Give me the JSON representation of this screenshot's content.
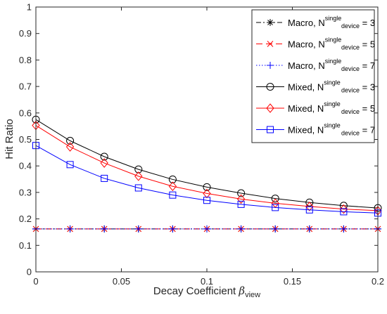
{
  "chart_data": {
    "type": "line",
    "xlabel": "Decay Coefficient",
    "xlabel_symbol": "β",
    "xlabel_sub": "view",
    "ylabel": "Hit Ratio",
    "xlim": [
      0,
      0.2
    ],
    "ylim": [
      0,
      1
    ],
    "x_ticks": [
      "0",
      "0.05",
      "0.1",
      "0.15",
      "0.2"
    ],
    "y_ticks": [
      "0",
      "0.1",
      "0.2",
      "0.3",
      "0.4",
      "0.5",
      "0.6",
      "0.7",
      "0.8",
      "0.9",
      "1"
    ],
    "grid": false,
    "legend_position": "top-right",
    "x": [
      0,
      0.02,
      0.04,
      0.06,
      0.08,
      0.1,
      0.12,
      0.14,
      0.16,
      0.18,
      0.2
    ],
    "series": [
      {
        "name": "Macro, N = 3",
        "legend_prefix": "Macro, N",
        "legend_sup": "single",
        "legend_sub": "device",
        "legend_suffix": " = 3",
        "color": "#000000",
        "dash": "7,3,2,3",
        "marker": "star",
        "values": [
          0.162,
          0.162,
          0.162,
          0.162,
          0.162,
          0.162,
          0.162,
          0.162,
          0.162,
          0.162,
          0.162
        ]
      },
      {
        "name": "Macro, N = 5",
        "legend_prefix": "Macro, N",
        "legend_sup": "single",
        "legend_sub": "device",
        "legend_suffix": " = 5",
        "color": "#ff0000",
        "dash": "9,5",
        "marker": "x",
        "values": [
          0.162,
          0.162,
          0.162,
          0.162,
          0.162,
          0.162,
          0.162,
          0.162,
          0.162,
          0.162,
          0.162
        ]
      },
      {
        "name": "Macro, N = 7",
        "legend_prefix": "Macro, N",
        "legend_sup": "single",
        "legend_sub": "device",
        "legend_suffix": " = 7",
        "color": "#0000ff",
        "dash": "1.5,2.5",
        "marker": "plus",
        "values": [
          0.162,
          0.162,
          0.162,
          0.162,
          0.162,
          0.162,
          0.162,
          0.162,
          0.162,
          0.162,
          0.162
        ]
      },
      {
        "name": "Mixed, N = 3",
        "legend_prefix": "Mixed, N",
        "legend_sup": "single",
        "legend_sub": "device",
        "legend_suffix": " = 3",
        "color": "#000000",
        "dash": "",
        "marker": "circle",
        "values": [
          0.575,
          0.495,
          0.435,
          0.387,
          0.349,
          0.32,
          0.297,
          0.277,
          0.262,
          0.25,
          0.241
        ]
      },
      {
        "name": "Mixed, N = 5",
        "legend_prefix": "Mixed, N",
        "legend_sup": "single",
        "legend_sub": "device",
        "legend_suffix": " = 5",
        "color": "#ff0000",
        "dash": "",
        "marker": "diamond",
        "values": [
          0.553,
          0.472,
          0.411,
          0.361,
          0.323,
          0.296,
          0.275,
          0.259,
          0.247,
          0.237,
          0.231
        ]
      },
      {
        "name": "Mixed, N = 7",
        "legend_prefix": "Mixed, N",
        "legend_sup": "single",
        "legend_sub": "device",
        "legend_suffix": " = 7",
        "color": "#0000ff",
        "dash": "",
        "marker": "square",
        "values": [
          0.477,
          0.405,
          0.353,
          0.317,
          0.29,
          0.27,
          0.255,
          0.243,
          0.234,
          0.227,
          0.222
        ]
      }
    ]
  }
}
